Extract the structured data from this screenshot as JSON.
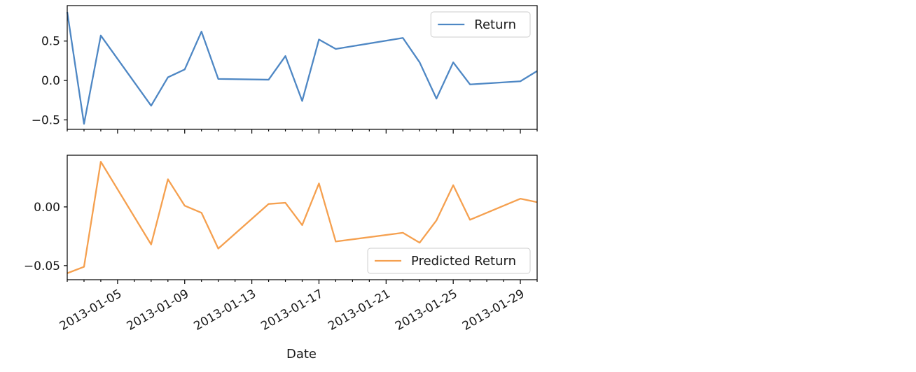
{
  "chart_data": [
    {
      "type": "line",
      "x": [
        "2013-01-02",
        "2013-01-03",
        "2013-01-04",
        "2013-01-07",
        "2013-01-08",
        "2013-01-09",
        "2013-01-10",
        "2013-01-11",
        "2013-01-14",
        "2013-01-15",
        "2013-01-16",
        "2013-01-17",
        "2013-01-18",
        "2013-01-22",
        "2013-01-23",
        "2013-01-24",
        "2013-01-25",
        "2013-01-26",
        "2013-01-29",
        "2013-01-30"
      ],
      "series": [
        {
          "name": "Return",
          "color": "#4e87c4",
          "values": [
            0.87,
            -0.55,
            0.57,
            -0.32,
            0.04,
            0.14,
            0.62,
            0.02,
            0.01,
            0.31,
            -0.26,
            0.52,
            0.4,
            0.54,
            0.23,
            -0.23,
            0.23,
            -0.05,
            -0.01,
            0.12
          ]
        }
      ],
      "ylim": [
        -0.62,
        0.95
      ],
      "yticks": [
        0.5,
        0.0,
        -0.5
      ],
      "ytick_labels": [
        "0.5",
        "0.0",
        "−0.5"
      ],
      "legend": "upper right"
    },
    {
      "type": "line",
      "x": [
        "2013-01-02",
        "2013-01-03",
        "2013-01-04",
        "2013-01-07",
        "2013-01-08",
        "2013-01-09",
        "2013-01-10",
        "2013-01-11",
        "2013-01-14",
        "2013-01-15",
        "2013-01-16",
        "2013-01-17",
        "2013-01-18",
        "2013-01-22",
        "2013-01-23",
        "2013-01-24",
        "2013-01-25",
        "2013-01-26",
        "2013-01-29",
        "2013-01-30"
      ],
      "series": [
        {
          "name": "Predicted Return",
          "color": "#f5a04f",
          "values": [
            -0.0565,
            -0.051,
            0.0385,
            -0.032,
            0.0235,
            0.001,
            -0.005,
            -0.0355,
            0.0025,
            0.0035,
            -0.0155,
            0.02,
            -0.0295,
            -0.022,
            -0.0305,
            -0.0115,
            0.0185,
            -0.011,
            0.007,
            0.004
          ]
        }
      ],
      "ylim": [
        -0.062,
        0.044
      ],
      "yticks": [
        0.0,
        -0.05
      ],
      "ytick_labels": [
        "0.00",
        "−0.05"
      ],
      "legend": "lower right"
    }
  ],
  "x_axis": {
    "range": [
      "2013-01-02",
      "2013-01-30"
    ],
    "major_ticks": [
      "2013-01-05",
      "2013-01-09",
      "2013-01-13",
      "2013-01-17",
      "2013-01-21",
      "2013-01-25",
      "2013-01-29"
    ],
    "tick_labels": [
      "2013-01-05",
      "2013-01-09",
      "2013-01-13",
      "2013-01-17",
      "2013-01-21",
      "2013-01-25",
      "2013-01-29"
    ],
    "xlabel": "Date"
  }
}
